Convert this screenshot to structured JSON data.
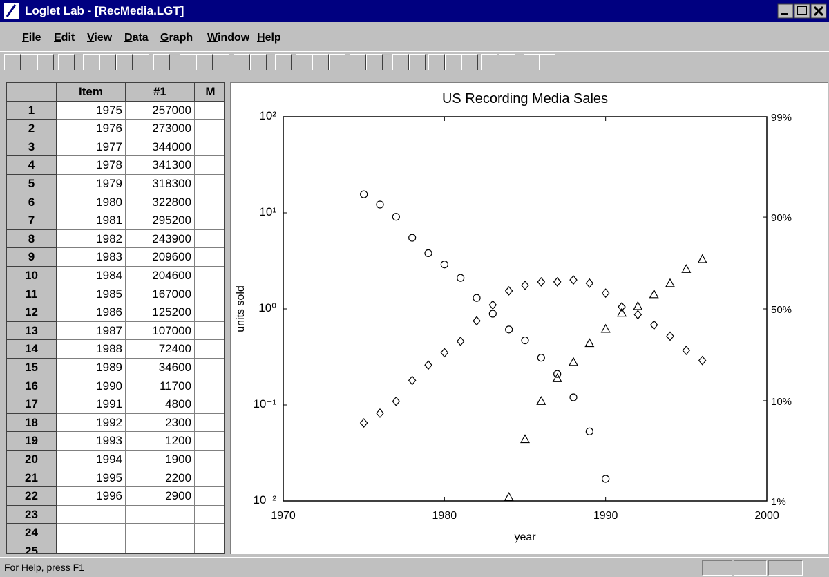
{
  "window": {
    "title": "Loglet Lab - [RecMedia.LGT]"
  },
  "menu": [
    "File",
    "Edit",
    "View",
    "Data",
    "Graph",
    "Window",
    "Help"
  ],
  "table": {
    "headers": [
      "Item",
      "#1",
      "M"
    ],
    "rows": [
      [
        1,
        1975,
        257000
      ],
      [
        2,
        1976,
        273000
      ],
      [
        3,
        1977,
        344000
      ],
      [
        4,
        1978,
        341300
      ],
      [
        5,
        1979,
        318300
      ],
      [
        6,
        1980,
        322800
      ],
      [
        7,
        1981,
        295200
      ],
      [
        8,
        1982,
        243900
      ],
      [
        9,
        1983,
        209600
      ],
      [
        10,
        1984,
        204600
      ],
      [
        11,
        1985,
        167000
      ],
      [
        12,
        1986,
        125200
      ],
      [
        13,
        1987,
        107000
      ],
      [
        14,
        1988,
        72400
      ],
      [
        15,
        1989,
        34600
      ],
      [
        16,
        1990,
        11700
      ],
      [
        17,
        1991,
        4800
      ],
      [
        18,
        1992,
        2300
      ],
      [
        19,
        1993,
        1200
      ],
      [
        20,
        1994,
        1900
      ],
      [
        21,
        1995,
        2200
      ],
      [
        22,
        1996,
        2900
      ],
      [
        23
      ],
      [
        24
      ],
      [
        25
      ]
    ]
  },
  "chart_data": {
    "type": "scatter",
    "title": "US Recording Media Sales",
    "xlabel": "year",
    "ylabel": "units sold",
    "yscale": "log",
    "y2scale": "logit",
    "xlim": [
      1970,
      2000
    ],
    "xticks": [
      1970,
      1980,
      1990,
      2000
    ],
    "ylim": [
      0.01,
      100
    ],
    "yticks": [
      {
        "value": 0.01,
        "label": "10⁻²"
      },
      {
        "value": 0.1,
        "label": "10⁻¹"
      },
      {
        "value": 1,
        "label": "10⁰"
      },
      {
        "value": 10,
        "label": "10¹"
      },
      {
        "value": 100,
        "label": "10²"
      }
    ],
    "y2lim": [
      1,
      99
    ],
    "y2ticks": [
      {
        "value": 1,
        "label": "1%"
      },
      {
        "value": 10,
        "label": "10%"
      },
      {
        "value": 50,
        "label": "50%"
      },
      {
        "value": 90,
        "label": "90%"
      },
      {
        "value": 99,
        "label": "99%"
      }
    ],
    "series": [
      {
        "marker": "circle",
        "color": "#000000",
        "x": [
          1975,
          1976,
          1977,
          1978,
          1979,
          1980,
          1981,
          1982,
          1983,
          1984,
          1985,
          1986,
          1987,
          1988,
          1989,
          1990
        ],
        "values": [
          15.6,
          12.2,
          9.1,
          5.5,
          3.8,
          2.9,
          2.1,
          1.3,
          0.89,
          0.61,
          0.47,
          0.31,
          0.21,
          0.12,
          0.053,
          0.017
        ]
      },
      {
        "marker": "triangle",
        "color": "#000000",
        "x": [
          1984,
          1985,
          1986,
          1987,
          1988,
          1989,
          1990,
          1991,
          1992,
          1993,
          1994,
          1995,
          1996
        ],
        "values": [
          0.011,
          0.044,
          0.11,
          0.19,
          0.28,
          0.44,
          0.62,
          0.91,
          1.07,
          1.42,
          1.85,
          2.6,
          3.3
        ]
      },
      {
        "marker": "diamond",
        "color": "#000000",
        "x": [
          1975,
          1976,
          1977,
          1978,
          1979,
          1980,
          1981,
          1982,
          1983,
          1984,
          1985,
          1986,
          1987,
          1988,
          1989,
          1990,
          1991,
          1992,
          1993,
          1994,
          1995,
          1996
        ],
        "values": [
          0.065,
          0.082,
          0.109,
          0.18,
          0.26,
          0.35,
          0.46,
          0.75,
          1.1,
          1.54,
          1.76,
          1.91,
          1.91,
          2.0,
          1.85,
          1.46,
          1.05,
          0.87,
          0.68,
          0.52,
          0.37,
          0.29
        ]
      }
    ]
  },
  "status": "For Help, press F1"
}
